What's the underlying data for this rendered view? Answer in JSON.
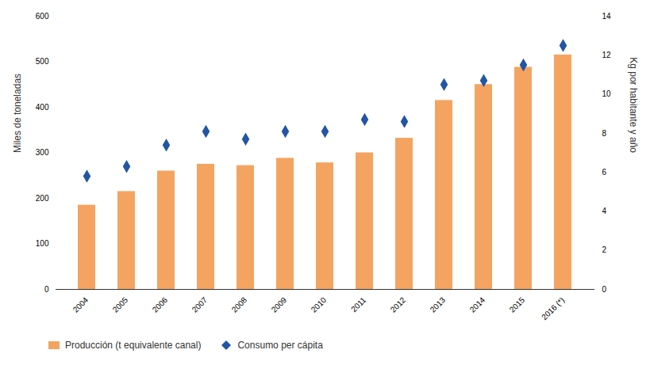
{
  "chart_data": {
    "type": "bar",
    "categories": [
      "2004",
      "2005",
      "2006",
      "2007",
      "2008",
      "2009",
      "2010",
      "2011",
      "2012",
      "2013",
      "2014",
      "2015",
      "2016 (*)"
    ],
    "series": [
      {
        "name": "Producción (t equivalente canal)",
        "type": "bar",
        "color": "#F4A460",
        "values": [
          185,
          215,
          260,
          275,
          272,
          288,
          278,
          300,
          332,
          415,
          450,
          488,
          515
        ]
      },
      {
        "name": "Consumo per cápita",
        "type": "scatter",
        "marker": "diamond",
        "color": "#2255A4",
        "axis": "y2",
        "values": [
          5.8,
          6.3,
          7.4,
          8.1,
          7.7,
          8.1,
          8.1,
          8.7,
          8.6,
          10.5,
          10.7,
          11.5,
          12.5
        ]
      }
    ],
    "ylabel": "Miles de toneladas",
    "y2label": "Kg por habitante y año",
    "ylim": [
      0,
      600
    ],
    "yticks": [
      0,
      100,
      200,
      300,
      400,
      500,
      600
    ],
    "y2lim": [
      0,
      14
    ],
    "y2ticks": [
      0,
      2,
      4,
      6,
      8,
      10,
      12,
      14
    ],
    "grid": false,
    "legend": "bottom"
  }
}
